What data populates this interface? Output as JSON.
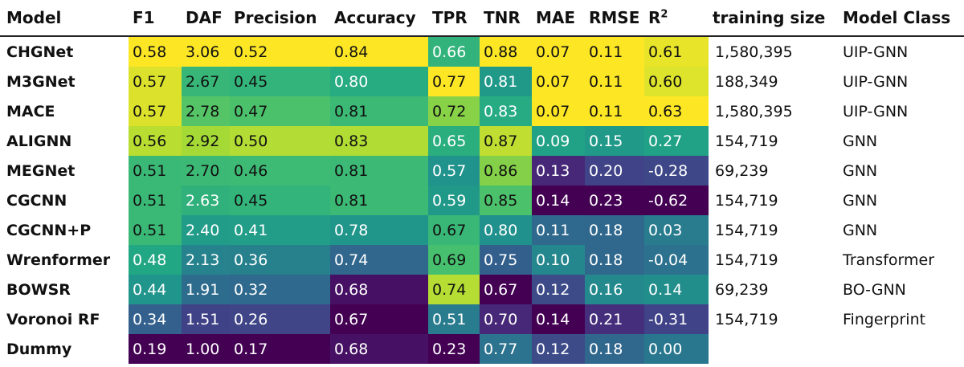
{
  "chart_data": {
    "type": "table",
    "columns": [
      "Model",
      "F1",
      "DAF",
      "Precision",
      "Accuracy",
      "TPR",
      "TNR",
      "MAE",
      "RMSE",
      "R",
      "training size",
      "Model Class"
    ],
    "r2_superscript": "2",
    "metric_columns": [
      "F1",
      "DAF",
      "Precision",
      "Accuracy",
      "TPR",
      "TNR",
      "MAE",
      "RMSE",
      "R2"
    ],
    "rows": [
      {
        "model": "CHGNet",
        "values": [
          "0.58",
          "3.06",
          "0.52",
          "0.84",
          "0.66",
          "0.88",
          "0.07",
          "0.11",
          "0.61"
        ],
        "training_size": "1,580,395",
        "model_class": "UIP-GNN"
      },
      {
        "model": "M3GNet",
        "values": [
          "0.57",
          "2.67",
          "0.45",
          "0.80",
          "0.77",
          "0.81",
          "0.07",
          "0.11",
          "0.60"
        ],
        "training_size": "188,349",
        "model_class": "UIP-GNN"
      },
      {
        "model": "MACE",
        "values": [
          "0.57",
          "2.78",
          "0.47",
          "0.81",
          "0.72",
          "0.83",
          "0.07",
          "0.11",
          "0.63"
        ],
        "training_size": "1,580,395",
        "model_class": "UIP-GNN"
      },
      {
        "model": "ALIGNN",
        "values": [
          "0.56",
          "2.92",
          "0.50",
          "0.83",
          "0.65",
          "0.87",
          "0.09",
          "0.15",
          "0.27"
        ],
        "training_size": "154,719",
        "model_class": "GNN"
      },
      {
        "model": "MEGNet",
        "values": [
          "0.51",
          "2.70",
          "0.46",
          "0.81",
          "0.57",
          "0.86",
          "0.13",
          "0.20",
          "-0.28"
        ],
        "training_size": "69,239",
        "model_class": "GNN"
      },
      {
        "model": "CGCNN",
        "values": [
          "0.51",
          "2.63",
          "0.45",
          "0.81",
          "0.59",
          "0.85",
          "0.14",
          "0.23",
          "-0.62"
        ],
        "training_size": "154,719",
        "model_class": "GNN"
      },
      {
        "model": "CGCNN+P",
        "values": [
          "0.51",
          "2.40",
          "0.41",
          "0.78",
          "0.67",
          "0.80",
          "0.11",
          "0.18",
          "0.03"
        ],
        "training_size": "154,719",
        "model_class": "GNN"
      },
      {
        "model": "Wrenformer",
        "values": [
          "0.48",
          "2.13",
          "0.36",
          "0.74",
          "0.69",
          "0.75",
          "0.10",
          "0.18",
          "-0.04"
        ],
        "training_size": "154,719",
        "model_class": "Transformer"
      },
      {
        "model": "BOWSR",
        "values": [
          "0.44",
          "1.91",
          "0.32",
          "0.68",
          "0.74",
          "0.67",
          "0.12",
          "0.16",
          "0.14"
        ],
        "training_size": "69,239",
        "model_class": "BO-GNN"
      },
      {
        "model": "Voronoi RF",
        "values": [
          "0.34",
          "1.51",
          "0.26",
          "0.67",
          "0.51",
          "0.70",
          "0.14",
          "0.21",
          "-0.31"
        ],
        "training_size": "154,719",
        "model_class": "Fingerprint"
      },
      {
        "model": "Dummy",
        "values": [
          "0.19",
          "1.00",
          "0.17",
          "0.68",
          "0.23",
          "0.77",
          "0.12",
          "0.18",
          "0.00"
        ],
        "training_size": "",
        "model_class": ""
      }
    ],
    "colormap": "viridis",
    "lower_is_better": [
      "MAE",
      "RMSE"
    ]
  }
}
